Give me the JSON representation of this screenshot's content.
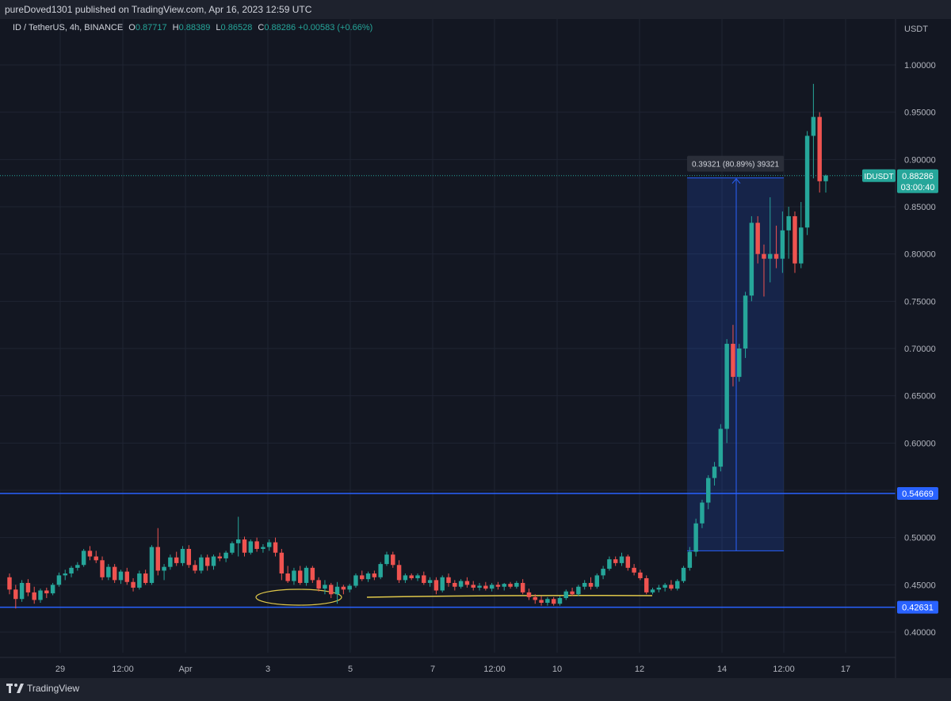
{
  "header": {
    "published": "pureDoved1301 published on TradingView.com, Apr 16, 2023 12:59 UTC"
  },
  "legend": {
    "symbol": "ID / TetherUS, 4h, BINANCE",
    "open_label": "O",
    "open": "0.87717",
    "high_label": "H",
    "high": "0.88389",
    "low_label": "L",
    "low": "0.86528",
    "close_label": "C",
    "close": "0.88286",
    "change": "+0.00583 (+0.66%)"
  },
  "colors": {
    "up": "#26a69a",
    "down": "#ef5350",
    "background": "#131722",
    "grid": "#1f2433",
    "level_line": "#2962ff",
    "annotation": "#e0c84a"
  },
  "footer": {
    "brand": "TradingView"
  },
  "chart_data": {
    "type": "candlestick",
    "currency": "USDT",
    "ylim": [
      0.38,
      1.04
    ],
    "y_ticks": [
      "0.40000",
      "0.45000",
      "0.50000",
      "0.55000",
      "0.60000",
      "0.65000",
      "0.70000",
      "0.75000",
      "0.80000",
      "0.85000",
      "0.90000",
      "0.95000",
      "1.00000"
    ],
    "x_ticks": [
      "29",
      "12:00",
      "Apr",
      "3",
      "5",
      "7",
      "12:00",
      "10",
      "12",
      "14",
      "12:00",
      "17"
    ],
    "levels": [
      {
        "value": 0.54669,
        "label": "0.54669"
      },
      {
        "value": 0.42631,
        "label": "0.42631"
      }
    ],
    "current_price": {
      "symbol": "IDUSDT",
      "value": 0.88286,
      "label": "0.88286",
      "countdown": "03:00:40"
    },
    "measure": {
      "text": "0.39321 (80.89%) 39321",
      "from": 0.486,
      "to": 0.8805
    },
    "candles": [
      [
        0.458,
        0.462,
        0.44,
        0.445
      ],
      [
        0.445,
        0.45,
        0.425,
        0.435
      ],
      [
        0.435,
        0.455,
        0.432,
        0.452
      ],
      [
        0.452,
        0.456,
        0.438,
        0.442
      ],
      [
        0.442,
        0.448,
        0.43,
        0.434
      ],
      [
        0.434,
        0.446,
        0.431,
        0.444
      ],
      [
        0.444,
        0.447,
        0.436,
        0.441
      ],
      [
        0.441,
        0.452,
        0.439,
        0.45
      ],
      [
        0.45,
        0.463,
        0.448,
        0.46
      ],
      [
        0.46,
        0.466,
        0.455,
        0.462
      ],
      [
        0.462,
        0.47,
        0.458,
        0.468
      ],
      [
        0.468,
        0.474,
        0.465,
        0.471
      ],
      [
        0.471,
        0.488,
        0.469,
        0.486
      ],
      [
        0.486,
        0.491,
        0.476,
        0.48
      ],
      [
        0.48,
        0.486,
        0.473,
        0.476
      ],
      [
        0.476,
        0.48,
        0.455,
        0.458
      ],
      [
        0.458,
        0.472,
        0.455,
        0.469
      ],
      [
        0.469,
        0.472,
        0.452,
        0.455
      ],
      [
        0.455,
        0.466,
        0.451,
        0.464
      ],
      [
        0.464,
        0.468,
        0.45,
        0.453
      ],
      [
        0.453,
        0.457,
        0.443,
        0.447
      ],
      [
        0.447,
        0.465,
        0.445,
        0.462
      ],
      [
        0.462,
        0.466,
        0.45,
        0.452
      ],
      [
        0.452,
        0.492,
        0.45,
        0.49
      ],
      [
        0.49,
        0.51,
        0.46,
        0.465
      ],
      [
        0.465,
        0.472,
        0.455,
        0.469
      ],
      [
        0.469,
        0.482,
        0.466,
        0.479
      ],
      [
        0.479,
        0.485,
        0.47,
        0.473
      ],
      [
        0.473,
        0.491,
        0.47,
        0.488
      ],
      [
        0.488,
        0.492,
        0.468,
        0.471
      ],
      [
        0.471,
        0.476,
        0.462,
        0.465
      ],
      [
        0.465,
        0.482,
        0.462,
        0.479
      ],
      [
        0.479,
        0.482,
        0.465,
        0.47
      ],
      [
        0.47,
        0.482,
        0.466,
        0.48
      ],
      [
        0.48,
        0.484,
        0.475,
        0.478
      ],
      [
        0.478,
        0.486,
        0.474,
        0.484
      ],
      [
        0.484,
        0.496,
        0.482,
        0.494
      ],
      [
        0.494,
        0.522,
        0.48,
        0.498
      ],
      [
        0.498,
        0.501,
        0.48,
        0.484
      ],
      [
        0.484,
        0.498,
        0.482,
        0.496
      ],
      [
        0.496,
        0.5,
        0.485,
        0.488
      ],
      [
        0.488,
        0.493,
        0.484,
        0.49
      ],
      [
        0.49,
        0.498,
        0.486,
        0.495
      ],
      [
        0.495,
        0.5,
        0.48,
        0.484
      ],
      [
        0.484,
        0.488,
        0.455,
        0.462
      ],
      [
        0.462,
        0.47,
        0.452,
        0.454
      ],
      [
        0.454,
        0.468,
        0.45,
        0.465
      ],
      [
        0.465,
        0.47,
        0.45,
        0.452
      ],
      [
        0.452,
        0.47,
        0.449,
        0.468
      ],
      [
        0.468,
        0.47,
        0.452,
        0.455
      ],
      [
        0.455,
        0.458,
        0.443,
        0.446
      ],
      [
        0.446,
        0.455,
        0.44,
        0.45
      ],
      [
        0.45,
        0.452,
        0.436,
        0.44
      ],
      [
        0.44,
        0.453,
        0.43,
        0.448
      ],
      [
        0.448,
        0.45,
        0.44,
        0.445
      ],
      [
        0.445,
        0.451,
        0.442,
        0.449
      ],
      [
        0.449,
        0.462,
        0.447,
        0.46
      ],
      [
        0.46,
        0.465,
        0.454,
        0.456
      ],
      [
        0.456,
        0.464,
        0.453,
        0.462
      ],
      [
        0.462,
        0.465,
        0.455,
        0.458
      ],
      [
        0.458,
        0.474,
        0.456,
        0.472
      ],
      [
        0.472,
        0.485,
        0.47,
        0.482
      ],
      [
        0.482,
        0.485,
        0.468,
        0.471
      ],
      [
        0.471,
        0.476,
        0.452,
        0.455
      ],
      [
        0.455,
        0.462,
        0.452,
        0.46
      ],
      [
        0.46,
        0.462,
        0.455,
        0.457
      ],
      [
        0.457,
        0.462,
        0.454,
        0.46
      ],
      [
        0.46,
        0.464,
        0.45,
        0.452
      ],
      [
        0.452,
        0.458,
        0.448,
        0.455
      ],
      [
        0.455,
        0.458,
        0.44,
        0.444
      ],
      [
        0.444,
        0.46,
        0.442,
        0.458
      ],
      [
        0.458,
        0.462,
        0.448,
        0.452
      ],
      [
        0.452,
        0.455,
        0.444,
        0.448
      ],
      [
        0.448,
        0.456,
        0.446,
        0.454
      ],
      [
        0.454,
        0.458,
        0.447,
        0.45
      ],
      [
        0.45,
        0.454,
        0.444,
        0.447
      ],
      [
        0.447,
        0.452,
        0.444,
        0.449
      ],
      [
        0.449,
        0.453,
        0.444,
        0.446
      ],
      [
        0.446,
        0.452,
        0.443,
        0.45
      ],
      [
        0.45,
        0.453,
        0.445,
        0.448
      ],
      [
        0.448,
        0.452,
        0.444,
        0.451
      ],
      [
        0.451,
        0.453,
        0.446,
        0.448
      ],
      [
        0.448,
        0.454,
        0.446,
        0.452
      ],
      [
        0.452,
        0.456,
        0.44,
        0.442
      ],
      [
        0.442,
        0.446,
        0.434,
        0.437
      ],
      [
        0.437,
        0.44,
        0.43,
        0.434
      ],
      [
        0.434,
        0.438,
        0.428,
        0.431
      ],
      [
        0.431,
        0.437,
        0.428,
        0.435
      ],
      [
        0.435,
        0.437,
        0.428,
        0.43
      ],
      [
        0.43,
        0.438,
        0.428,
        0.436
      ],
      [
        0.436,
        0.445,
        0.434,
        0.443
      ],
      [
        0.443,
        0.447,
        0.438,
        0.44
      ],
      [
        0.44,
        0.45,
        0.438,
        0.448
      ],
      [
        0.448,
        0.455,
        0.445,
        0.452
      ],
      [
        0.452,
        0.458,
        0.445,
        0.448
      ],
      [
        0.448,
        0.462,
        0.446,
        0.46
      ],
      [
        0.46,
        0.47,
        0.456,
        0.467
      ],
      [
        0.467,
        0.48,
        0.465,
        0.477
      ],
      [
        0.477,
        0.48,
        0.47,
        0.473
      ],
      [
        0.473,
        0.484,
        0.47,
        0.48
      ],
      [
        0.48,
        0.482,
        0.465,
        0.468
      ],
      [
        0.468,
        0.472,
        0.46,
        0.463
      ],
      [
        0.463,
        0.466,
        0.455,
        0.457
      ],
      [
        0.457,
        0.46,
        0.44,
        0.442
      ],
      [
        0.442,
        0.447,
        0.44,
        0.445
      ],
      [
        0.445,
        0.45,
        0.442,
        0.447
      ],
      [
        0.447,
        0.452,
        0.443,
        0.45
      ],
      [
        0.45,
        0.455,
        0.444,
        0.446
      ],
      [
        0.446,
        0.456,
        0.444,
        0.454
      ],
      [
        0.454,
        0.47,
        0.452,
        0.468
      ],
      [
        0.468,
        0.49,
        0.465,
        0.485
      ],
      [
        0.485,
        0.52,
        0.48,
        0.515
      ],
      [
        0.515,
        0.54,
        0.51,
        0.537
      ],
      [
        0.537,
        0.566,
        0.53,
        0.563
      ],
      [
        0.563,
        0.58,
        0.555,
        0.575
      ],
      [
        0.575,
        0.62,
        0.57,
        0.615
      ],
      [
        0.615,
        0.71,
        0.6,
        0.705
      ],
      [
        0.705,
        0.725,
        0.66,
        0.67
      ],
      [
        0.67,
        0.705,
        0.665,
        0.7
      ],
      [
        0.7,
        0.76,
        0.69,
        0.756
      ],
      [
        0.756,
        0.84,
        0.75,
        0.833
      ],
      [
        0.833,
        0.84,
        0.79,
        0.8
      ],
      [
        0.8,
        0.81,
        0.755,
        0.795
      ],
      [
        0.795,
        0.86,
        0.77,
        0.8
      ],
      [
        0.8,
        0.83,
        0.785,
        0.795
      ],
      [
        0.795,
        0.845,
        0.78,
        0.825
      ],
      [
        0.825,
        0.85,
        0.795,
        0.84
      ],
      [
        0.84,
        0.845,
        0.78,
        0.79
      ],
      [
        0.79,
        0.855,
        0.785,
        0.828
      ],
      [
        0.828,
        0.93,
        0.82,
        0.925
      ],
      [
        0.925,
        0.98,
        0.88,
        0.945
      ],
      [
        0.945,
        0.95,
        0.865,
        0.877
      ],
      [
        0.877,
        0.884,
        0.865,
        0.883
      ]
    ]
  }
}
